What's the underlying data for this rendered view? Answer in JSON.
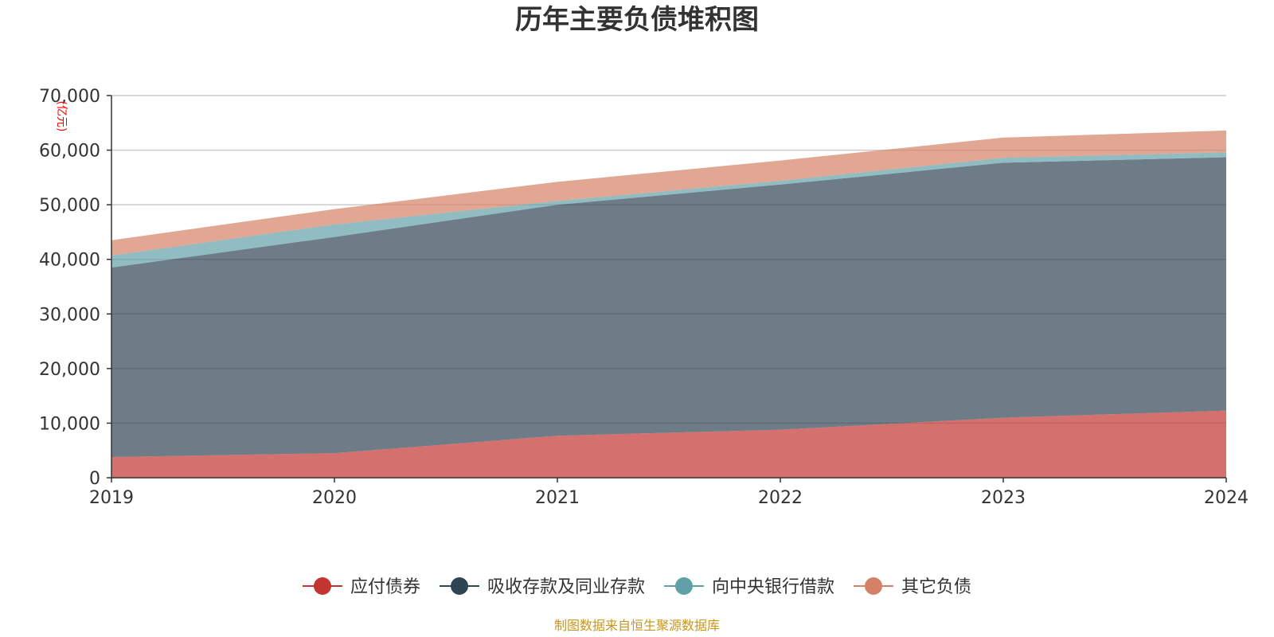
{
  "chart_data": {
    "type": "area",
    "stacked": true,
    "title": "历年主要负债堆积图",
    "ylabel": "(亿元)",
    "xlabel": "",
    "x": [
      "2019",
      "2020",
      "2021",
      "2022",
      "2023",
      "2024"
    ],
    "ylim": [
      0,
      70000
    ],
    "yticks": [
      0,
      10000,
      20000,
      30000,
      40000,
      50000,
      60000,
      70000
    ],
    "ytick_labels": [
      "0",
      "10,000",
      "20,000",
      "30,000",
      "40,000",
      "50,000",
      "60,000",
      "70,000"
    ],
    "grid": true,
    "legend_position": "bottom",
    "series": [
      {
        "name": "应付债券",
        "color": "#c23531",
        "values": [
          3800,
          4500,
          7700,
          8800,
          11000,
          12300
        ]
      },
      {
        "name": "吸收存款及同业存款",
        "color": "#2f4554",
        "values": [
          34700,
          39600,
          42300,
          44900,
          46700,
          46400
        ]
      },
      {
        "name": "向中央银行借款",
        "color": "#61a0a8",
        "values": [
          2200,
          2300,
          700,
          700,
          900,
          900
        ]
      },
      {
        "name": "其它负债",
        "color": "#d48265",
        "values": [
          2800,
          2800,
          3500,
          3700,
          3700,
          4000
        ]
      }
    ],
    "source_note": "制图数据来自恒生聚源数据库"
  }
}
